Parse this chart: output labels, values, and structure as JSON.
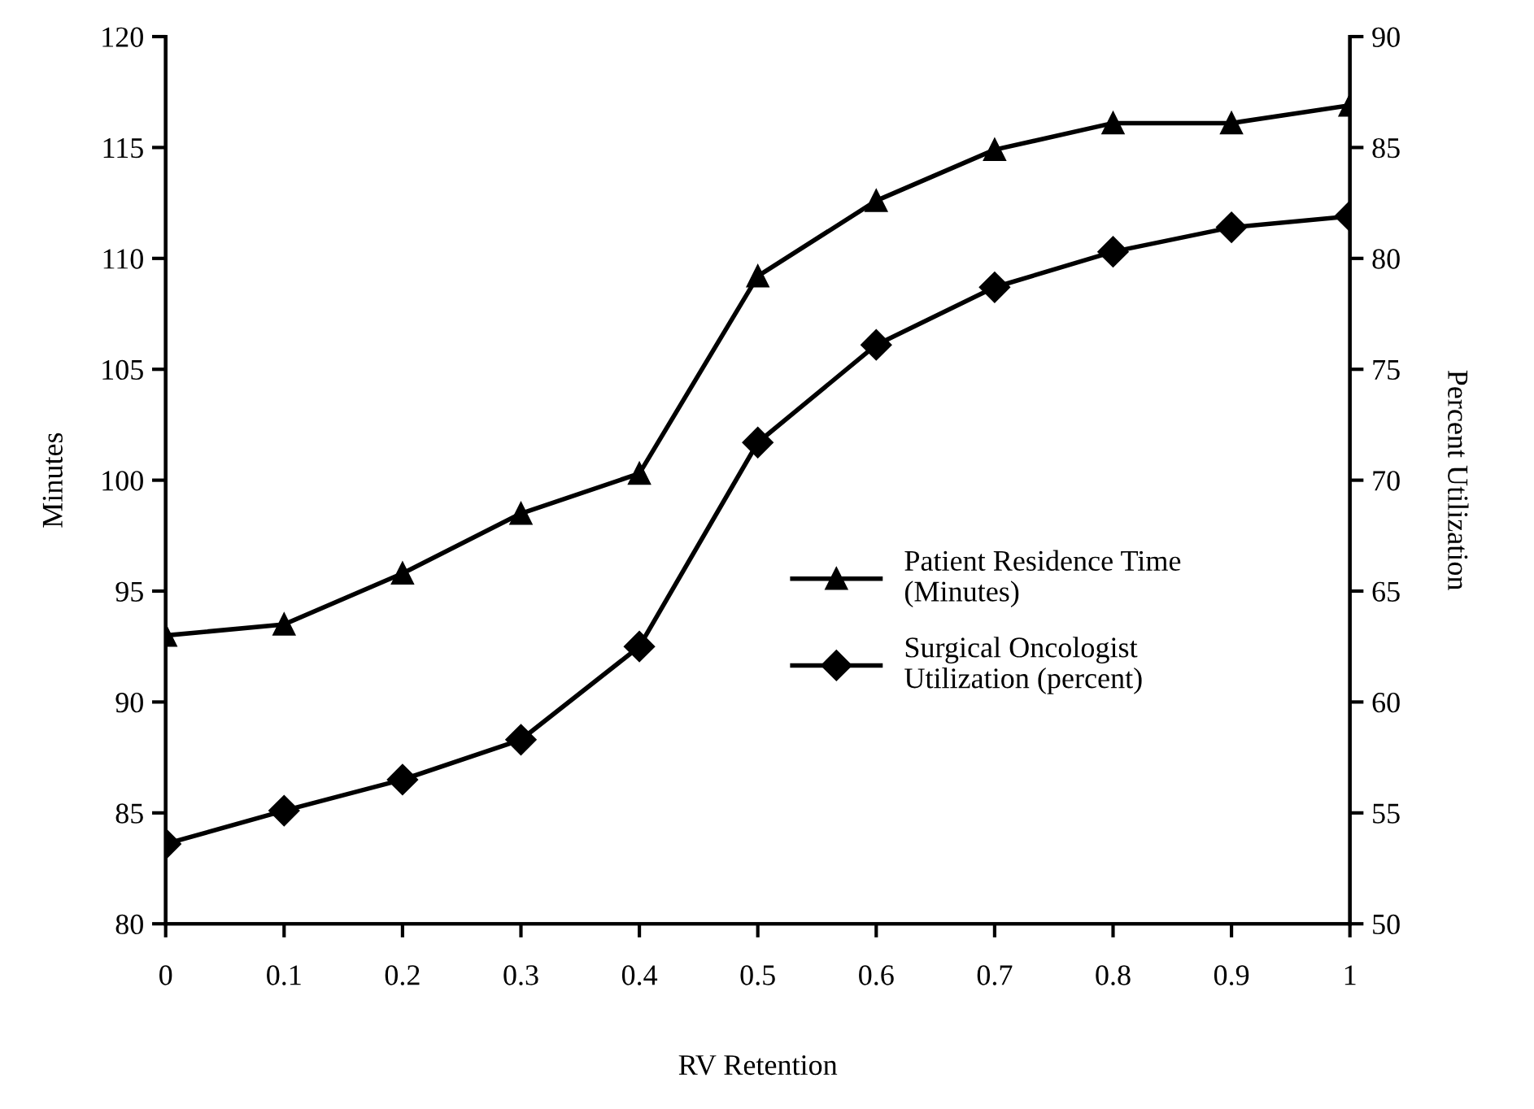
{
  "chart_data": {
    "type": "line",
    "xlabel": "RV Retention",
    "ylabel": "Minutes",
    "y2label": "Percent Utilization",
    "x": [
      0,
      0.1,
      0.2,
      0.3,
      0.4,
      0.5,
      0.6,
      0.7,
      0.8,
      0.9,
      1
    ],
    "xlim": [
      0,
      1
    ],
    "xticks": [
      0,
      0.1,
      0.2,
      0.3,
      0.4,
      0.5,
      0.6,
      0.7,
      0.8,
      0.9,
      1
    ],
    "ylim": [
      80,
      120
    ],
    "yticks": [
      80,
      85,
      90,
      95,
      100,
      105,
      110,
      115,
      120
    ],
    "y2lim": [
      50,
      90
    ],
    "y2ticks": [
      50,
      55,
      60,
      65,
      70,
      75,
      80,
      85,
      90
    ],
    "grid": false,
    "legend": "right",
    "series": [
      {
        "name": "Patient Residence Time\n(Minutes)",
        "color": "#000000",
        "marker": "triangle",
        "values": [
          93,
          93.5,
          95.8,
          98.5,
          100.3,
          109.2,
          112.6,
          114.9,
          116.1,
          116.1,
          116.9
        ]
      },
      {
        "name": "Surgical Oncologist\nUtilization (percent)",
        "color": "#000000",
        "marker": "diamond",
        "axis": "y2",
        "values": [
          53.6,
          55.1,
          56.5,
          58.3,
          62.5,
          71.7,
          76.1,
          78.7,
          80.3,
          81.4,
          81.9
        ]
      }
    ]
  }
}
